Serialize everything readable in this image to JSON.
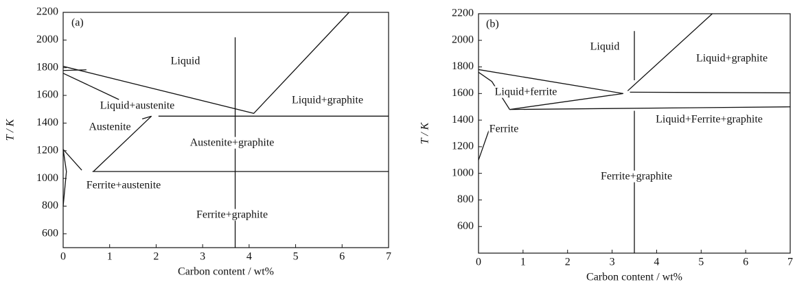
{
  "chart_data": [
    {
      "type": "line",
      "title": "(a)",
      "x_label": "Carbon content / wt%",
      "y_label": "T / K",
      "xlim": [
        0,
        7
      ],
      "ylim": [
        500,
        2200
      ],
      "xticks": [
        0,
        1,
        2,
        3,
        4,
        5,
        6,
        7
      ],
      "yticks": [
        600,
        800,
        1000,
        1200,
        1400,
        1600,
        1800,
        2000,
        2200
      ],
      "color": "#111111",
      "series": [
        {
          "x": [
            0,
            4.1,
            6.15
          ],
          "values": [
            1810,
            1470,
            2200
          ]
        },
        {
          "x": [
            0,
            0.5
          ],
          "values": [
            1780,
            1785
          ]
        },
        {
          "x": [
            0,
            1.2
          ],
          "values": [
            1760,
            1570
          ]
        },
        {
          "x": [
            2.05,
            7
          ],
          "values": [
            1450,
            1450
          ]
        },
        {
          "x": [
            0.65,
            1.9,
            1.7
          ],
          "values": [
            1050,
            1450,
            1430
          ]
        },
        {
          "x": [
            0.63,
            7
          ],
          "values": [
            1050,
            1050
          ]
        },
        {
          "x": [
            0,
            0.4
          ],
          "values": [
            1210,
            1060
          ]
        },
        {
          "x": [
            0,
            0.07,
            0
          ],
          "values": [
            1210,
            1050,
            800
          ]
        },
        {
          "x": [
            3.7,
            3.7
          ],
          "values": [
            2020,
            500
          ]
        }
      ],
      "annotations": [
        "Liquid",
        "Liquid+austenite",
        "Austenite",
        "Austenite+graphite",
        "Ferrite+austenite",
        "Ferrite+graphite",
        "Liquid+graphite"
      ]
    },
    {
      "type": "line",
      "title": "(b)",
      "x_label": "Carbon content / wt%",
      "y_label": "T / K",
      "xlim": [
        0,
        7
      ],
      "ylim": [
        400,
        2200
      ],
      "xticks": [
        0,
        1,
        2,
        3,
        4,
        5,
        6,
        7
      ],
      "yticks": [
        600,
        800,
        1000,
        1200,
        1400,
        1600,
        1800,
        2000,
        2200
      ],
      "color": "#111111",
      "series": [
        {
          "x": [
            0,
            3.25
          ],
          "values": [
            1780,
            1600
          ]
        },
        {
          "x": [
            3.35,
            5.25
          ],
          "values": [
            1620,
            2200
          ]
        },
        {
          "x": [
            0,
            0.3,
            0.7
          ],
          "values": [
            1760,
            1690,
            1480
          ]
        },
        {
          "x": [
            0.7,
            3.25
          ],
          "values": [
            1480,
            1600
          ]
        },
        {
          "x": [
            0.7,
            7
          ],
          "values": [
            1480,
            1500
          ]
        },
        {
          "x": [
            3.4,
            7
          ],
          "values": [
            1610,
            1605
          ]
        },
        {
          "x": [
            0,
            0.23
          ],
          "values": [
            1100,
            1320
          ]
        },
        {
          "x": [
            3.5,
            3.5,
            null,
            3.5,
            3.5
          ],
          "values": [
            2070,
            1700,
            null,
            1470,
            400
          ]
        }
      ],
      "annotations": [
        "Liquid",
        "Liquid+graphite",
        "Liquid+ferrite",
        "Liquid+Ferrite+graphite",
        "Ferrite",
        "Ferrite+graphite"
      ]
    }
  ]
}
